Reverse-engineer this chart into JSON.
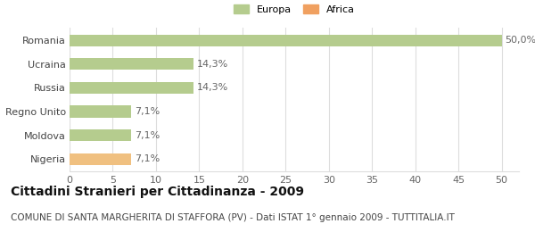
{
  "categories": [
    "Nigeria",
    "Moldova",
    "Regno Unito",
    "Russia",
    "Ucraina",
    "Romania"
  ],
  "values": [
    7.1,
    7.1,
    7.1,
    14.3,
    14.3,
    50.0
  ],
  "labels": [
    "7,1%",
    "7,1%",
    "7,1%",
    "14,3%",
    "14,3%",
    "50,0%"
  ],
  "bar_colors": [
    "#f0c080",
    "#b5cc8e",
    "#b5cc8e",
    "#b5cc8e",
    "#b5cc8e",
    "#b5cc8e"
  ],
  "legend_items": [
    {
      "label": "Europa",
      "color": "#b5cc8e"
    },
    {
      "label": "Africa",
      "color": "#f0a060"
    }
  ],
  "xlim": [
    0,
    52
  ],
  "xticks": [
    0,
    5,
    10,
    15,
    20,
    25,
    30,
    35,
    40,
    45,
    50
  ],
  "title": "Cittadini Stranieri per Cittadinanza - 2009",
  "subtitle": "COMUNE DI SANTA MARGHERITA DI STAFFORA (PV) - Dati ISTAT 1° gennaio 2009 - TUTTITALIA.IT",
  "title_fontsize": 10,
  "subtitle_fontsize": 7.5,
  "label_fontsize": 8,
  "tick_fontsize": 8,
  "background_color": "#ffffff",
  "grid_color": "#dddddd",
  "bar_height": 0.5
}
